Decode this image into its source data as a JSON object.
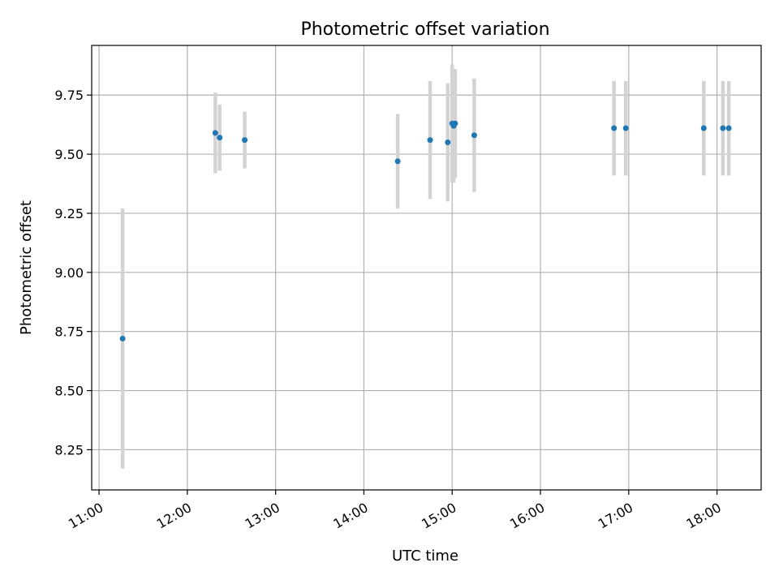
{
  "chart_data": {
    "type": "scatter",
    "title": "Photometric offset variation",
    "xlabel": "UTC time",
    "ylabel": "Photometric offset",
    "xlim": [
      "10:55",
      "18:30"
    ],
    "ylim": [
      8.08,
      9.96
    ],
    "x_ticks": [
      "11:00",
      "12:00",
      "13:00",
      "14:00",
      "15:00",
      "16:00",
      "17:00",
      "18:00"
    ],
    "y_ticks": [
      8.25,
      8.5,
      8.75,
      9.0,
      9.25,
      9.5,
      9.75
    ],
    "grid": true,
    "point_color": "#1f77b4",
    "errorbar_color": "#d3d3d3",
    "points": [
      {
        "time": "11:16",
        "y": 8.72,
        "yerr_low": 0.55,
        "yerr_high": 0.55
      },
      {
        "time": "12:19",
        "y": 9.59,
        "yerr_low": 0.17,
        "yerr_high": 0.17
      },
      {
        "time": "12:22",
        "y": 9.57,
        "yerr_low": 0.14,
        "yerr_high": 0.14
      },
      {
        "time": "12:39",
        "y": 9.56,
        "yerr_low": 0.12,
        "yerr_high": 0.12
      },
      {
        "time": "14:23",
        "y": 9.47,
        "yerr_low": 0.2,
        "yerr_high": 0.2
      },
      {
        "time": "14:45",
        "y": 9.56,
        "yerr_low": 0.25,
        "yerr_high": 0.25
      },
      {
        "time": "14:57",
        "y": 9.55,
        "yerr_low": 0.25,
        "yerr_high": 0.25
      },
      {
        "time": "15:00",
        "y": 9.63,
        "yerr_low": 0.25,
        "yerr_high": 0.25
      },
      {
        "time": "15:01",
        "y": 9.62,
        "yerr_low": 0.24,
        "yerr_high": 0.24
      },
      {
        "time": "15:02",
        "y": 9.63,
        "yerr_low": 0.23,
        "yerr_high": 0.23
      },
      {
        "time": "15:15",
        "y": 9.58,
        "yerr_low": 0.24,
        "yerr_high": 0.24
      },
      {
        "time": "16:50",
        "y": 9.61,
        "yerr_low": 0.2,
        "yerr_high": 0.2
      },
      {
        "time": "16:58",
        "y": 9.61,
        "yerr_low": 0.2,
        "yerr_high": 0.2
      },
      {
        "time": "17:51",
        "y": 9.61,
        "yerr_low": 0.2,
        "yerr_high": 0.2
      },
      {
        "time": "18:04",
        "y": 9.61,
        "yerr_low": 0.2,
        "yerr_high": 0.2
      },
      {
        "time": "18:08",
        "y": 9.61,
        "yerr_low": 0.2,
        "yerr_high": 0.2
      }
    ]
  }
}
